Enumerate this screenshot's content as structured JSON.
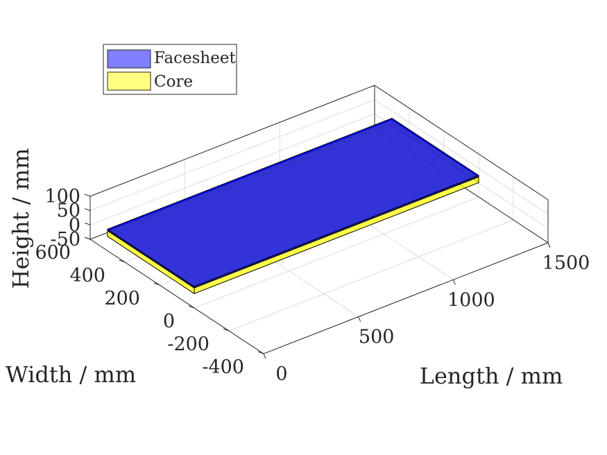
{
  "chart_data": {
    "type": "3d-box",
    "title": "",
    "xlabel": "Length / mm",
    "ylabel": "Width / mm",
    "zlabel": "Height / mm",
    "xlim": [
      0,
      1500
    ],
    "ylim": [
      -400,
      600
    ],
    "zlim": [
      -50,
      100
    ],
    "x_ticks": [
      "0",
      "500",
      "1000",
      "1500"
    ],
    "y_ticks": [
      "-400",
      "-200",
      "0",
      "200",
      "400",
      "600"
    ],
    "z_ticks": [
      "-50",
      "0",
      "50",
      "100"
    ],
    "grid": true,
    "legend_position": "top-left",
    "series": [
      {
        "name": "Facesheet",
        "color": "#0000ff",
        "x": [
          0,
          1500
        ],
        "y": [
          0,
          500
        ],
        "z": [
          20,
          25
        ]
      },
      {
        "name": "Core",
        "color": "#ffff00",
        "x": [
          0,
          1500
        ],
        "y": [
          0,
          500
        ],
        "z": [
          0,
          20
        ]
      }
    ]
  }
}
